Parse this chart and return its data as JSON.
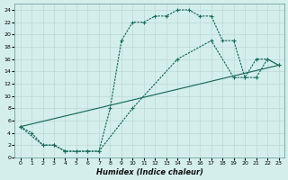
{
  "xlabel": "Humidex (Indice chaleur)",
  "bg_color": "#d4eeec",
  "grid_color": "#c0dbd8",
  "line_color": "#1a6b5a",
  "xlim": [
    -0.5,
    23.5
  ],
  "ylim": [
    0,
    25
  ],
  "xtick_labels": [
    "0",
    "1",
    "2",
    "3",
    "4",
    "5",
    "6",
    "7",
    "8",
    "9",
    "10",
    "11",
    "12",
    "13",
    "14",
    "15",
    "16",
    "17",
    "18",
    "19",
    "20",
    "21",
    "22",
    "23"
  ],
  "yticks": [
    0,
    2,
    4,
    6,
    8,
    10,
    12,
    14,
    16,
    18,
    20,
    22,
    24
  ],
  "curve1_x": [
    0,
    1,
    2,
    3,
    4,
    5,
    6,
    7,
    8,
    9,
    10,
    11,
    12,
    13,
    14,
    15,
    16,
    17,
    18,
    19,
    20,
    21,
    22,
    23
  ],
  "curve1_y": [
    5,
    4,
    2,
    2,
    1,
    1,
    1,
    1,
    8,
    19,
    22,
    22,
    23,
    23,
    24,
    24,
    23,
    23,
    19,
    19,
    13,
    16,
    16,
    15
  ],
  "curve2_x": [
    0,
    2,
    3,
    4,
    5,
    6,
    7,
    10,
    14,
    17,
    19,
    21,
    22,
    23
  ],
  "curve2_y": [
    5,
    2,
    2,
    1,
    1,
    1,
    1,
    8,
    16,
    19,
    13,
    13,
    16,
    15
  ],
  "curve3_x": [
    0,
    23
  ],
  "curve3_y": [
    5,
    15
  ]
}
